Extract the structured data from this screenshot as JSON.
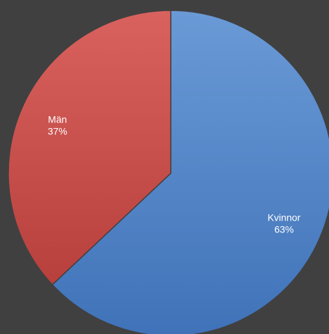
{
  "chart_data": {
    "type": "pie",
    "title": "",
    "slices": [
      {
        "label": "Kvinnor",
        "value": 63,
        "pct_label": "63%",
        "color": "#4f81bd"
      },
      {
        "label": "Män",
        "value": 37,
        "pct_label": "37%",
        "color": "#c0504d"
      }
    ],
    "legend": "none",
    "start_angle_deg": 0,
    "direction": "clockwise"
  }
}
